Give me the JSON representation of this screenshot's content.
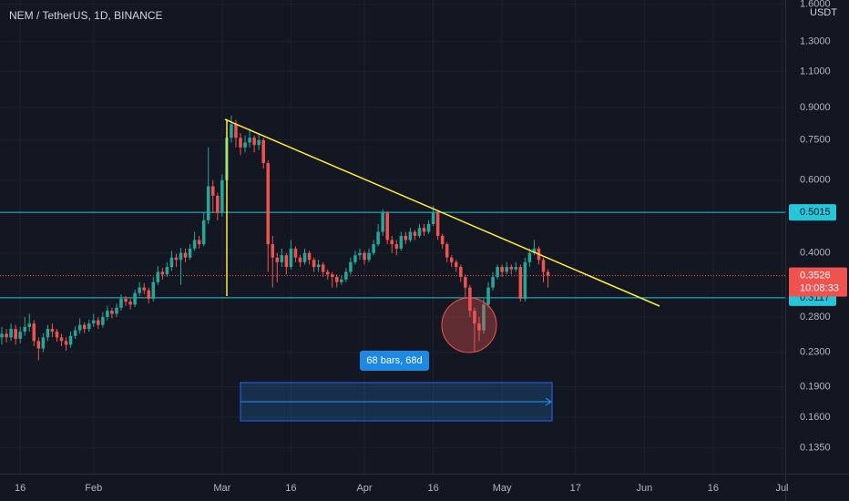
{
  "chart_data": {
    "type": "candlestick",
    "title": "NEM / TetherUS, 1D, BINANCE",
    "y_unit": "USDT",
    "open": [
      0.25,
      0.255,
      0.25,
      0.262,
      0.248,
      0.258,
      0.265,
      0.27,
      0.245,
      0.235,
      0.25,
      0.262,
      0.258,
      0.25,
      0.245,
      0.24,
      0.252,
      0.26,
      0.268,
      0.262,
      0.27,
      0.275,
      0.268,
      0.28,
      0.29,
      0.285,
      0.295,
      0.31,
      0.305,
      0.3,
      0.32,
      0.33,
      0.325,
      0.31,
      0.34,
      0.36,
      0.355,
      0.37,
      0.39,
      0.385,
      0.4,
      0.39,
      0.41,
      0.43,
      0.42,
      0.48,
      0.58,
      0.55,
      0.5,
      0.6,
      0.76,
      0.82,
      0.76,
      0.72,
      0.74,
      0.76,
      0.73,
      0.75,
      0.66,
      0.42,
      0.39,
      0.38,
      0.395,
      0.37,
      0.41,
      0.39,
      0.38,
      0.4,
      0.385,
      0.37,
      0.375,
      0.36,
      0.355,
      0.35,
      0.34,
      0.345,
      0.36,
      0.38,
      0.395,
      0.4,
      0.385,
      0.4,
      0.42,
      0.45,
      0.5,
      0.43,
      0.42,
      0.41,
      0.44,
      0.43,
      0.45,
      0.44,
      0.46,
      0.45,
      0.47,
      0.5,
      0.44,
      0.42,
      0.39,
      0.38,
      0.37,
      0.35,
      0.33,
      0.29,
      0.27,
      0.26,
      0.3,
      0.33,
      0.35,
      0.37,
      0.36,
      0.37,
      0.365,
      0.37,
      0.31,
      0.38,
      0.4,
      0.41,
      0.385,
      0.36
    ],
    "high": [
      0.265,
      0.262,
      0.27,
      0.268,
      0.265,
      0.28,
      0.285,
      0.275,
      0.25,
      0.256,
      0.268,
      0.27,
      0.262,
      0.255,
      0.25,
      0.258,
      0.266,
      0.278,
      0.272,
      0.276,
      0.285,
      0.28,
      0.288,
      0.298,
      0.295,
      0.302,
      0.318,
      0.315,
      0.31,
      0.326,
      0.34,
      0.338,
      0.33,
      0.35,
      0.372,
      0.368,
      0.38,
      0.405,
      0.398,
      0.412,
      0.41,
      0.42,
      0.45,
      0.44,
      0.5,
      0.72,
      0.6,
      0.56,
      0.62,
      0.8,
      0.86,
      0.84,
      0.78,
      0.77,
      0.8,
      0.77,
      0.78,
      0.76,
      0.67,
      0.44,
      0.4,
      0.41,
      0.4,
      0.43,
      0.415,
      0.395,
      0.41,
      0.405,
      0.39,
      0.385,
      0.38,
      0.365,
      0.36,
      0.355,
      0.352,
      0.368,
      0.39,
      0.405,
      0.41,
      0.405,
      0.41,
      0.43,
      0.47,
      0.51,
      0.505,
      0.44,
      0.43,
      0.45,
      0.45,
      0.46,
      0.455,
      0.47,
      0.47,
      0.48,
      0.52,
      0.505,
      0.445,
      0.425,
      0.395,
      0.385,
      0.375,
      0.355,
      0.335,
      0.295,
      0.28,
      0.31,
      0.34,
      0.36,
      0.375,
      0.375,
      0.38,
      0.375,
      0.38,
      0.375,
      0.39,
      0.41,
      0.43,
      0.415,
      0.39,
      0.365
    ],
    "low": [
      0.24,
      0.243,
      0.245,
      0.24,
      0.242,
      0.252,
      0.258,
      0.238,
      0.22,
      0.23,
      0.245,
      0.25,
      0.244,
      0.238,
      0.232,
      0.236,
      0.248,
      0.255,
      0.256,
      0.258,
      0.265,
      0.262,
      0.264,
      0.275,
      0.278,
      0.28,
      0.29,
      0.298,
      0.292,
      0.296,
      0.315,
      0.318,
      0.302,
      0.305,
      0.335,
      0.345,
      0.35,
      0.362,
      0.37,
      0.335,
      0.38,
      0.385,
      0.405,
      0.41,
      0.415,
      0.47,
      0.5,
      0.48,
      0.49,
      0.58,
      0.74,
      0.72,
      0.69,
      0.7,
      0.72,
      0.7,
      0.71,
      0.64,
      0.36,
      0.33,
      0.34,
      0.37,
      0.355,
      0.365,
      0.38,
      0.37,
      0.375,
      0.375,
      0.36,
      0.36,
      0.35,
      0.345,
      0.33,
      0.33,
      0.335,
      0.34,
      0.355,
      0.375,
      0.385,
      0.375,
      0.38,
      0.395,
      0.415,
      0.44,
      0.42,
      0.4,
      0.395,
      0.405,
      0.42,
      0.425,
      0.43,
      0.435,
      0.44,
      0.445,
      0.465,
      0.43,
      0.41,
      0.38,
      0.37,
      0.36,
      0.34,
      0.31,
      0.28,
      0.23,
      0.245,
      0.255,
      0.295,
      0.325,
      0.345,
      0.35,
      0.355,
      0.355,
      0.36,
      0.305,
      0.305,
      0.37,
      0.395,
      0.375,
      0.34,
      0.33
    ],
    "close": [
      0.255,
      0.25,
      0.262,
      0.248,
      0.258,
      0.265,
      0.27,
      0.245,
      0.235,
      0.25,
      0.262,
      0.258,
      0.25,
      0.245,
      0.24,
      0.252,
      0.26,
      0.268,
      0.262,
      0.27,
      0.275,
      0.268,
      0.28,
      0.29,
      0.285,
      0.295,
      0.31,
      0.305,
      0.3,
      0.32,
      0.33,
      0.325,
      0.31,
      0.34,
      0.36,
      0.355,
      0.37,
      0.39,
      0.385,
      0.4,
      0.39,
      0.41,
      0.43,
      0.42,
      0.48,
      0.58,
      0.55,
      0.5,
      0.6,
      0.76,
      0.82,
      0.76,
      0.72,
      0.74,
      0.76,
      0.73,
      0.75,
      0.66,
      0.42,
      0.39,
      0.38,
      0.395,
      0.37,
      0.41,
      0.39,
      0.38,
      0.4,
      0.385,
      0.37,
      0.375,
      0.36,
      0.355,
      0.35,
      0.34,
      0.345,
      0.36,
      0.38,
      0.395,
      0.4,
      0.385,
      0.4,
      0.42,
      0.45,
      0.5,
      0.43,
      0.42,
      0.41,
      0.44,
      0.43,
      0.45,
      0.44,
      0.46,
      0.45,
      0.47,
      0.5,
      0.44,
      0.42,
      0.39,
      0.38,
      0.37,
      0.35,
      0.33,
      0.29,
      0.27,
      0.26,
      0.3,
      0.33,
      0.35,
      0.37,
      0.36,
      0.37,
      0.365,
      0.37,
      0.31,
      0.38,
      0.4,
      0.41,
      0.385,
      0.36,
      0.3526
    ],
    "up_color": "#26a69a",
    "down_color": "#ef5350",
    "log_y": true,
    "ylim": [
      0.117,
      1.637
    ],
    "yticks": [
      {
        "value": 0.135,
        "label": "0.1350"
      },
      {
        "value": 0.16,
        "label": "0.1600"
      },
      {
        "value": 0.19,
        "label": "0.1900"
      },
      {
        "value": 0.23,
        "label": "0.2300"
      },
      {
        "value": 0.28,
        "label": "0.2800"
      },
      {
        "value": 0.4,
        "label": "0.4000"
      },
      {
        "value": 0.6,
        "label": "0.6000"
      },
      {
        "value": 0.75,
        "label": "0.7500"
      },
      {
        "value": 0.9,
        "label": "0.9000"
      },
      {
        "value": 1.1,
        "label": "1.1000"
      },
      {
        "value": 1.3,
        "label": "1.3000"
      },
      {
        "value": 1.6,
        "label": "1.6000"
      }
    ],
    "xlim": [
      -0.4,
      170.7
    ],
    "xticks": [
      {
        "value": 4,
        "label": "16"
      },
      {
        "value": 20,
        "label": "Feb"
      },
      {
        "value": 48,
        "label": "Mar"
      },
      {
        "value": 63,
        "label": "16"
      },
      {
        "value": 79,
        "label": "Apr"
      },
      {
        "value": 94,
        "label": "16"
      },
      {
        "value": 109,
        "label": "May"
      },
      {
        "value": 125,
        "label": "17"
      },
      {
        "value": 140,
        "label": "Jun"
      },
      {
        "value": 155,
        "label": "16"
      },
      {
        "value": 170,
        "label": "Jul"
      }
    ],
    "grid": true,
    "levels": [
      {
        "value": 0.5015,
        "color": "#26c6da"
      },
      {
        "value": 0.3117,
        "color": "#26c6da"
      }
    ],
    "last_price": 0.3526,
    "countdown": "10:08:33",
    "measure_label": "68 bars, 68d"
  }
}
